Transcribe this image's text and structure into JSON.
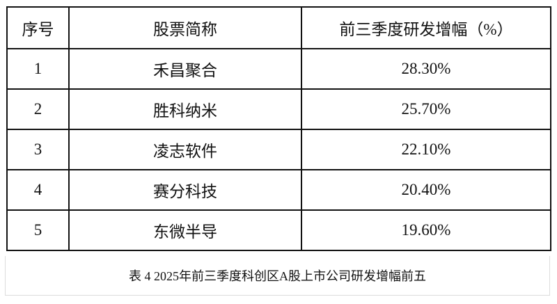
{
  "table": {
    "headers": [
      "序号",
      "股票简称",
      "前三季度研发增幅（%）"
    ],
    "rows": [
      {
        "no": "1",
        "name": "禾昌聚合",
        "growth": "28.30%"
      },
      {
        "no": "2",
        "name": "胜科纳米",
        "growth": "25.70%"
      },
      {
        "no": "3",
        "name": "凌志软件",
        "growth": "22.10%"
      },
      {
        "no": "4",
        "name": "赛分科技",
        "growth": "20.40%"
      },
      {
        "no": "5",
        "name": "东微半导",
        "growth": "19.60%"
      }
    ]
  },
  "caption": "表 4 2025年前三季度科创区A股上市公司研发增幅前五"
}
